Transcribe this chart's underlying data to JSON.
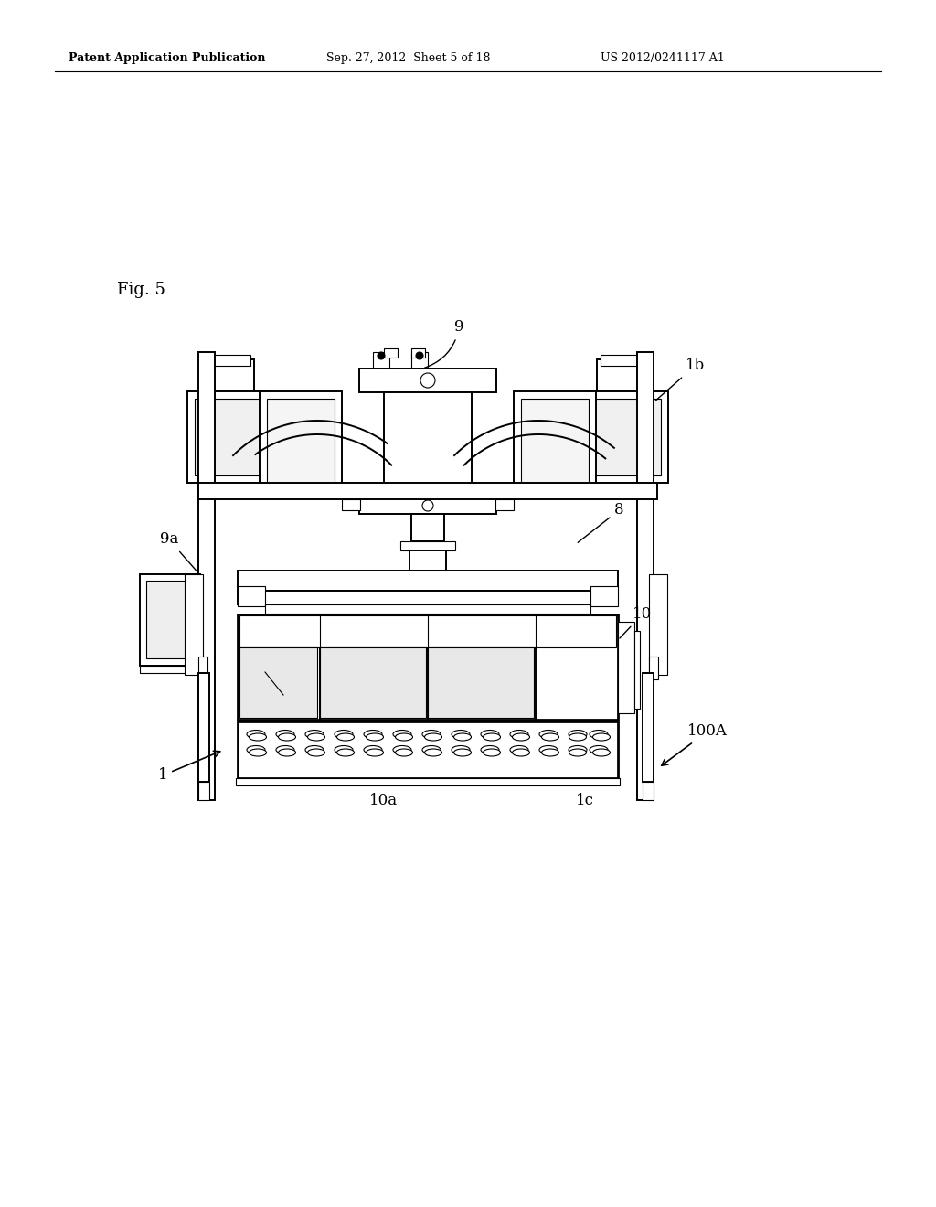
{
  "bg_color": "#ffffff",
  "header_left": "Patent Application Publication",
  "header_mid": "Sep. 27, 2012  Sheet 5 of 18",
  "header_right": "US 2012/0241117 A1",
  "fig_label": "Fig. 5",
  "lw_main": 1.4,
  "lw_thin": 0.8,
  "lw_thick": 2.0
}
